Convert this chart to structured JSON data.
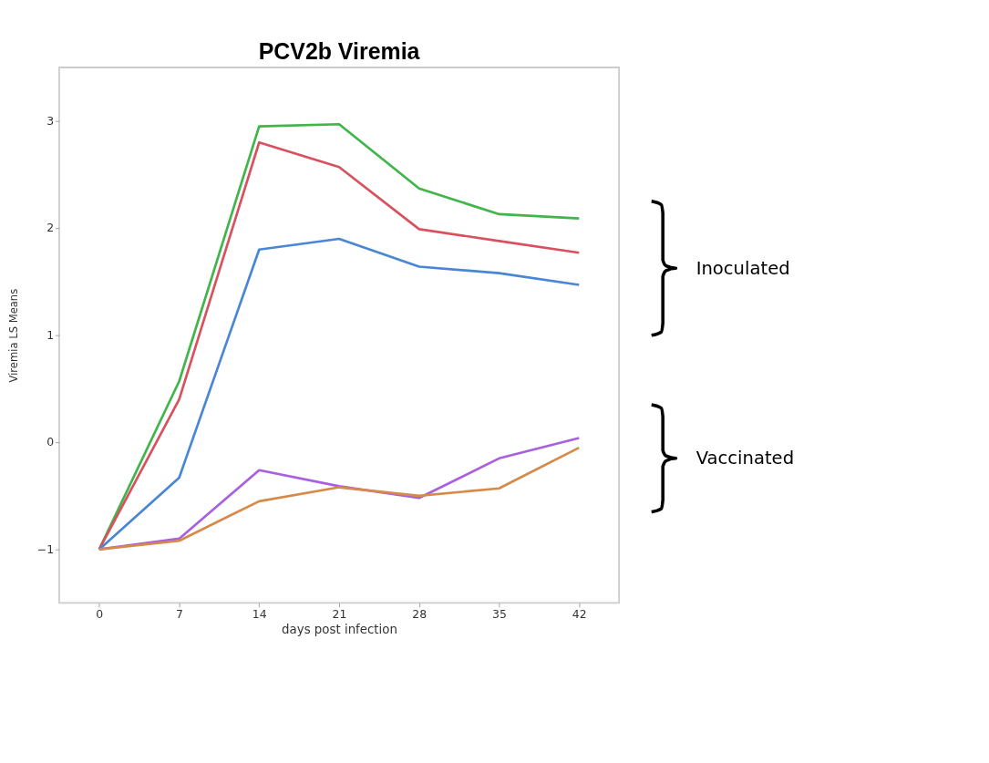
{
  "chart_data": {
    "type": "line",
    "title": "PCV2b Viremia",
    "xlabel": "days post infection",
    "ylabel": "Viremia LS Means",
    "x": [
      0,
      7,
      14,
      21,
      28,
      35,
      42
    ],
    "series": [
      {
        "color": "#3fb54a",
        "values": [
          -1,
          0.57,
          2.95,
          2.97,
          2.37,
          2.13,
          2.09
        ]
      },
      {
        "color": "#d9505e",
        "values": [
          -1,
          0.4,
          2.8,
          2.57,
          1.99,
          1.88,
          1.77
        ]
      },
      {
        "color": "#4a86d6",
        "values": [
          -1,
          -0.33,
          1.8,
          1.9,
          1.64,
          1.58,
          1.47
        ]
      },
      {
        "color": "#a85fe0",
        "values": [
          -1,
          -0.9,
          -0.26,
          -0.41,
          -0.52,
          -0.15,
          0.04
        ]
      },
      {
        "color": "#d68a4a",
        "values": [
          -1,
          -0.92,
          -0.55,
          -0.42,
          -0.5,
          -0.43,
          -0.05
        ]
      }
    ],
    "xlim": [
      -3.5,
      45.5
    ],
    "xticks": [
      0,
      7,
      14,
      21,
      28,
      35,
      42
    ],
    "ylim": [
      -1.5,
      3.5
    ],
    "yticks": [
      -1,
      0,
      1,
      2,
      3
    ],
    "grid": false,
    "marker": "none",
    "line_style": "solid",
    "annotations": [
      "Inoculated",
      "Vaccinated"
    ]
  }
}
